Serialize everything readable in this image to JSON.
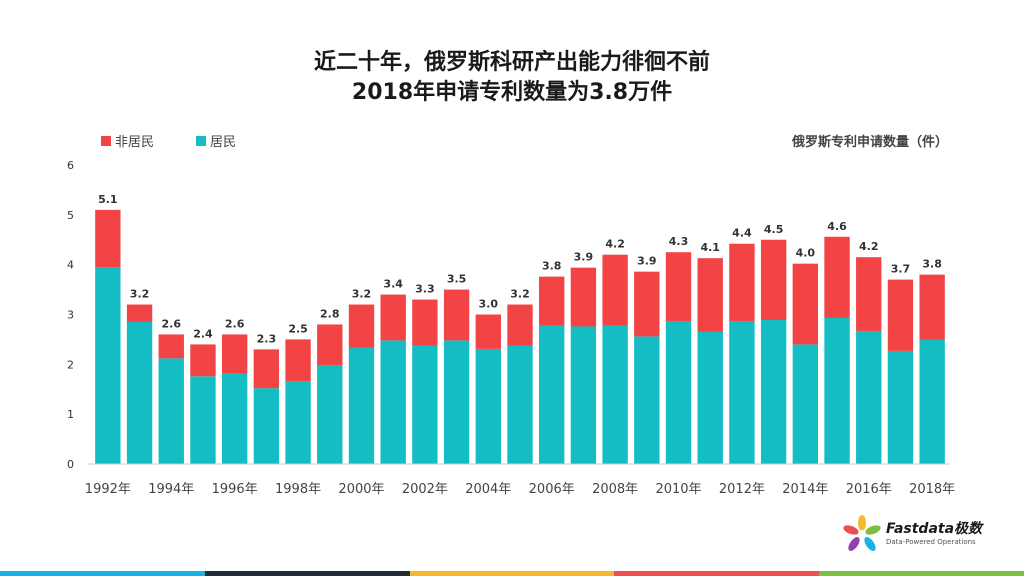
{
  "title_lines": [
    "近二十年，俄罗斯科研产出能力徘徊不前",
    "2018年申请专利数量为3.8万件"
  ],
  "unit_label": "俄罗斯专利申请数量（件）",
  "colors": {
    "non_resident": "#f24444",
    "resident": "#14bcc4",
    "stripes": [
      "#1ab0e8",
      "#222b36",
      "#f5b92b",
      "#ef4e4e",
      "#7dbf3f"
    ]
  },
  "logo": {
    "brand": "Fastdata极数",
    "tagline": "Data-Powered Operations",
    "icon": "flower-logo-icon"
  },
  "chart_data": {
    "type": "bar",
    "stacked": true,
    "ylim": [
      0,
      6
    ],
    "yticks": [
      "0",
      "1",
      "2",
      "3",
      "4",
      "5",
      "6"
    ],
    "categories": [
      "1992",
      "1993",
      "1994",
      "1995",
      "1996",
      "1997",
      "1998",
      "1999",
      "2000",
      "2001",
      "2002",
      "2003",
      "2004",
      "2005",
      "2006",
      "2007",
      "2008",
      "2009",
      "2010",
      "2011",
      "2012",
      "2013",
      "2014",
      "2015",
      "2016",
      "2017",
      "2018"
    ],
    "x_tick_labels": [
      "1992年",
      "",
      "1994年",
      "",
      "1996年",
      "",
      "1998年",
      "",
      "2000年",
      "",
      "2002年",
      "",
      "2004年",
      "",
      "2006年",
      "",
      "2008年",
      "",
      "2010年",
      "",
      "2012年",
      "",
      "2014年",
      "",
      "2016年",
      "",
      "2018年"
    ],
    "series": [
      {
        "name": "居民",
        "values": [
          3.95,
          2.85,
          2.12,
          1.76,
          1.81,
          1.52,
          1.66,
          1.98,
          2.33,
          2.48,
          2.37,
          2.48,
          2.31,
          2.37,
          2.78,
          2.76,
          2.78,
          2.56,
          2.87,
          2.65,
          2.87,
          2.89,
          2.4,
          2.93,
          2.67,
          2.27,
          2.49
        ]
      },
      {
        "name": "非居民",
        "values": [
          1.15,
          0.35,
          0.48,
          0.64,
          0.79,
          0.78,
          0.84,
          0.82,
          0.87,
          0.92,
          0.93,
          1.02,
          0.69,
          0.83,
          0.98,
          1.18,
          1.42,
          1.3,
          1.38,
          1.48,
          1.55,
          1.61,
          1.62,
          1.63,
          1.48,
          1.43,
          1.31
        ]
      }
    ],
    "totals": [
      "5.1",
      "3.2",
      "2.6",
      "2.4",
      "2.6",
      "2.3",
      "2.5",
      "2.8",
      "3.2",
      "3.4",
      "3.3",
      "3.5",
      "3.0",
      "3.2",
      "3.8",
      "3.9",
      "4.2",
      "3.9",
      "4.3",
      "4.1",
      "4.4",
      "4.5",
      "4.0",
      "4.6",
      "4.2",
      "3.7",
      "3.8"
    ],
    "legend": [
      {
        "name": "非居民",
        "color": "#f24444"
      },
      {
        "name": "居民",
        "color": "#14bcc4"
      }
    ],
    "legend_position": "top-left",
    "grid": false
  }
}
